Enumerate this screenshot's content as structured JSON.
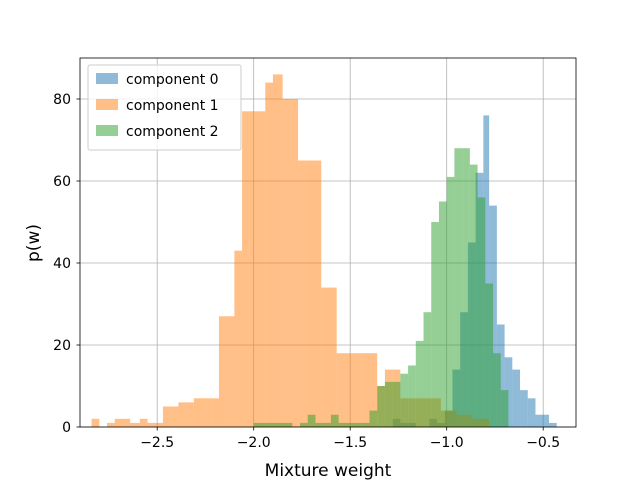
{
  "chart_data": {
    "type": "bar",
    "title": "",
    "xlabel": "Mixture weight",
    "ylabel": "p(w)",
    "xlim": [
      -2.9,
      -0.33
    ],
    "ylim": [
      0,
      90
    ],
    "xticks": [
      -2.5,
      -2.0,
      -1.5,
      -1.0,
      -0.5
    ],
    "xtick_labels": [
      "−2.5",
      "−2.0",
      "−1.5",
      "−1.0",
      "−0.5"
    ],
    "yticks": [
      0,
      20,
      40,
      60,
      80
    ],
    "ytick_labels": [
      "0",
      "20",
      "40",
      "60",
      "80"
    ],
    "grid": true,
    "legend_position": "top-left",
    "series": [
      {
        "name": "component 0",
        "color": "#1f77b4",
        "opacity": 0.5,
        "bins": [
          [
            -1.28,
            -1.24,
            2
          ],
          [
            -1.24,
            -1.2,
            1
          ],
          [
            -1.2,
            -1.16,
            1
          ],
          [
            -1.09,
            -1.05,
            2
          ],
          [
            -1.05,
            -1.01,
            1
          ],
          [
            -1.01,
            -0.97,
            4
          ],
          [
            -0.97,
            -0.93,
            14
          ],
          [
            -0.93,
            -0.89,
            28
          ],
          [
            -0.89,
            -0.85,
            45
          ],
          [
            -0.85,
            -0.81,
            62
          ],
          [
            -0.81,
            -0.78,
            76
          ],
          [
            -0.78,
            -0.74,
            54
          ],
          [
            -0.74,
            -0.7,
            25
          ],
          [
            -0.7,
            -0.66,
            17
          ],
          [
            -0.66,
            -0.62,
            14
          ],
          [
            -0.62,
            -0.58,
            9
          ],
          [
            -0.58,
            -0.54,
            7
          ],
          [
            -0.54,
            -0.5,
            3
          ],
          [
            -0.5,
            -0.47,
            3
          ],
          [
            -0.47,
            -0.43,
            1
          ]
        ]
      },
      {
        "name": "component 1",
        "color": "#ff7f0e",
        "opacity": 0.5,
        "bins": [
          [
            -2.84,
            -2.8,
            2
          ],
          [
            -2.76,
            -2.72,
            1
          ],
          [
            -2.72,
            -2.68,
            2
          ],
          [
            -2.68,
            -2.64,
            2
          ],
          [
            -2.64,
            -2.59,
            1
          ],
          [
            -2.59,
            -2.55,
            2
          ],
          [
            -2.55,
            -2.51,
            1
          ],
          [
            -2.51,
            -2.47,
            1
          ],
          [
            -2.47,
            -2.43,
            5
          ],
          [
            -2.43,
            -2.39,
            5
          ],
          [
            -2.39,
            -2.35,
            6
          ],
          [
            -2.35,
            -2.31,
            6
          ],
          [
            -2.31,
            -2.27,
            7
          ],
          [
            -2.27,
            -2.22,
            7
          ],
          [
            -2.22,
            -2.18,
            7
          ],
          [
            -2.18,
            -2.14,
            27
          ],
          [
            -2.14,
            -2.1,
            27
          ],
          [
            -2.1,
            -2.06,
            43
          ],
          [
            -2.06,
            -2.02,
            77
          ],
          [
            -2.02,
            -1.98,
            77
          ],
          [
            -1.98,
            -1.94,
            77
          ],
          [
            -1.94,
            -1.9,
            84
          ],
          [
            -1.9,
            -1.85,
            86
          ],
          [
            -1.85,
            -1.81,
            80
          ],
          [
            -1.81,
            -1.77,
            80
          ],
          [
            -1.77,
            -1.73,
            65
          ],
          [
            -1.73,
            -1.69,
            65
          ],
          [
            -1.69,
            -1.65,
            65
          ],
          [
            -1.65,
            -1.61,
            34
          ],
          [
            -1.61,
            -1.57,
            34
          ],
          [
            -1.57,
            -1.53,
            18
          ],
          [
            -1.53,
            -1.48,
            18
          ],
          [
            -1.48,
            -1.44,
            18
          ],
          [
            -1.44,
            -1.4,
            18
          ],
          [
            -1.4,
            -1.36,
            18
          ],
          [
            -1.36,
            -1.32,
            10
          ],
          [
            -1.32,
            -1.28,
            14
          ],
          [
            -1.28,
            -1.24,
            14
          ],
          [
            -1.24,
            -1.2,
            7
          ],
          [
            -1.2,
            -1.16,
            7
          ],
          [
            -1.16,
            -1.11,
            7
          ],
          [
            -1.11,
            -1.07,
            7
          ],
          [
            -1.07,
            -1.03,
            7
          ],
          [
            -1.03,
            -0.99,
            4
          ],
          [
            -0.99,
            -0.95,
            4
          ],
          [
            -0.95,
            -0.91,
            3
          ],
          [
            -0.91,
            -0.87,
            3
          ],
          [
            -0.87,
            -0.83,
            2
          ],
          [
            -0.83,
            -0.78,
            2
          ]
        ]
      },
      {
        "name": "component 2",
        "color": "#2ca02c",
        "opacity": 0.5,
        "bins": [
          [
            -2.0,
            -1.96,
            1
          ],
          [
            -1.96,
            -1.92,
            1
          ],
          [
            -1.92,
            -1.88,
            1
          ],
          [
            -1.88,
            -1.84,
            1
          ],
          [
            -1.84,
            -1.8,
            1
          ],
          [
            -1.76,
            -1.72,
            1
          ],
          [
            -1.72,
            -1.68,
            3
          ],
          [
            -1.68,
            -1.64,
            1
          ],
          [
            -1.64,
            -1.6,
            1
          ],
          [
            -1.6,
            -1.56,
            3
          ],
          [
            -1.56,
            -1.52,
            1
          ],
          [
            -1.52,
            -1.48,
            1
          ],
          [
            -1.48,
            -1.44,
            1
          ],
          [
            -1.44,
            -1.4,
            1
          ],
          [
            -1.4,
            -1.36,
            4
          ],
          [
            -1.36,
            -1.32,
            10
          ],
          [
            -1.32,
            -1.28,
            11
          ],
          [
            -1.28,
            -1.24,
            11
          ],
          [
            -1.24,
            -1.2,
            13
          ],
          [
            -1.2,
            -1.16,
            15
          ],
          [
            -1.16,
            -1.12,
            21
          ],
          [
            -1.12,
            -1.08,
            28
          ],
          [
            -1.08,
            -1.04,
            50
          ],
          [
            -1.04,
            -1.0,
            55
          ],
          [
            -1.0,
            -0.96,
            61
          ],
          [
            -0.96,
            -0.92,
            68
          ],
          [
            -0.92,
            -0.88,
            68
          ],
          [
            -0.88,
            -0.84,
            64
          ],
          [
            -0.84,
            -0.8,
            56
          ],
          [
            -0.8,
            -0.76,
            35
          ],
          [
            -0.76,
            -0.72,
            18
          ],
          [
            -0.72,
            -0.68,
            9
          ]
        ]
      }
    ]
  }
}
